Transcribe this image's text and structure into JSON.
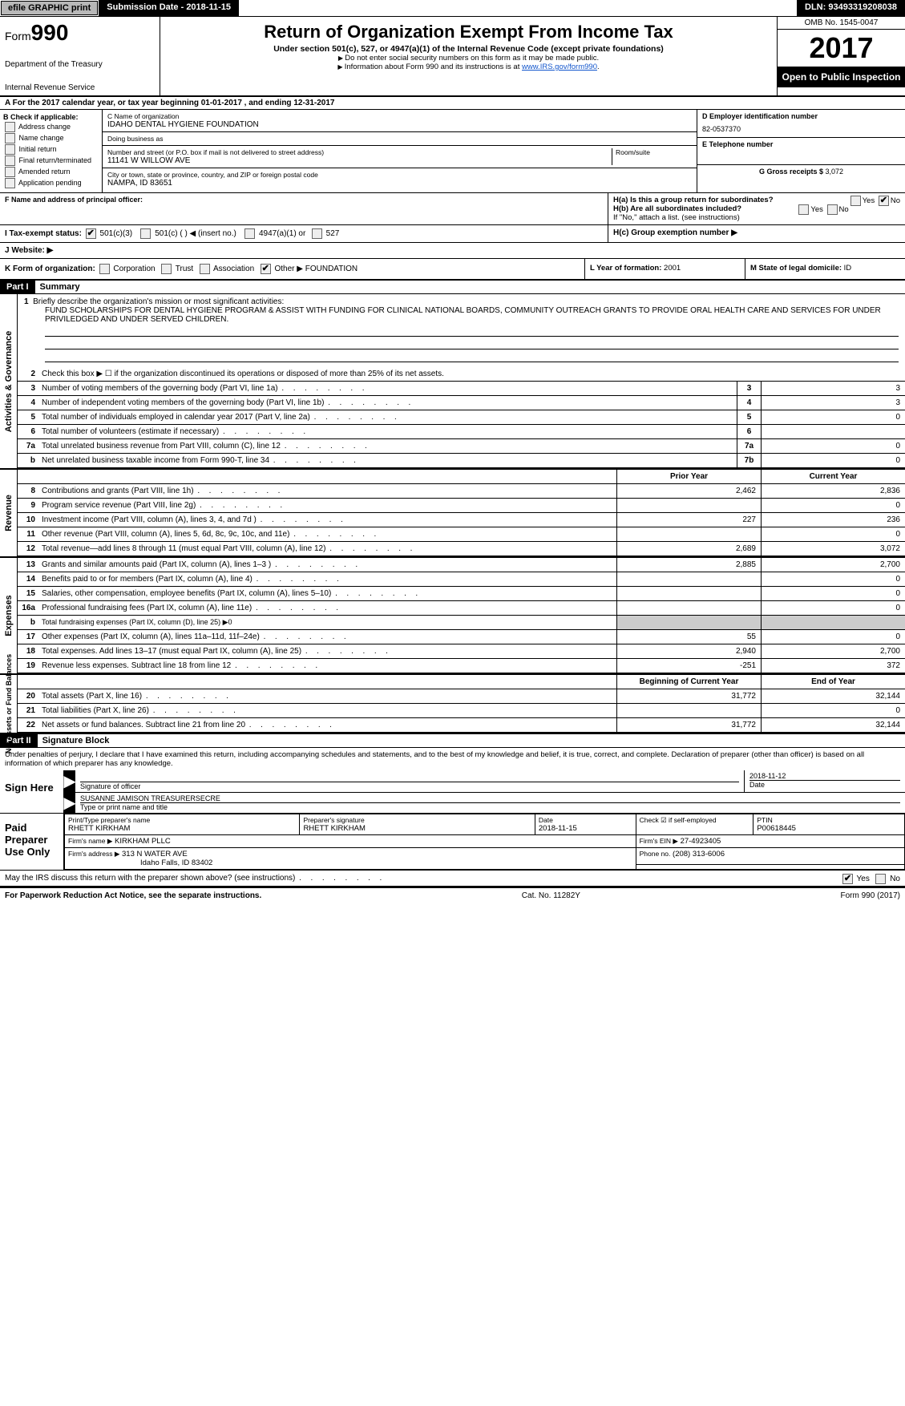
{
  "topbar": {
    "efile_btn": "efile GRAPHIC print",
    "submission_label": "Submission Date - 2018-11-15",
    "dln": "DLN: 93493319208038"
  },
  "header": {
    "form_label": "Form",
    "form_num": "990",
    "dept": "Department of the Treasury",
    "irs": "Internal Revenue Service",
    "title": "Return of Organization Exempt From Income Tax",
    "sub": "Under section 501(c), 527, or 4947(a)(1) of the Internal Revenue Code (except private foundations)",
    "note1": "Do not enter social security numbers on this form as it may be made public.",
    "note2": "Information about Form 990 and its instructions is at ",
    "link": "www.IRS.gov/form990",
    "omb": "OMB No. 1545-0047",
    "year": "2017",
    "open": "Open to Public Inspection"
  },
  "rowA": "A   For the 2017 calendar year, or tax year beginning 01-01-2017       , and ending 12-31-2017",
  "colB": {
    "title": "B Check if applicable:",
    "items": [
      "Address change",
      "Name change",
      "Initial return",
      "Final return/terminated",
      "Amended return",
      "Application pending"
    ]
  },
  "colC": {
    "name_label": "C Name of organization",
    "name": "IDAHO DENTAL HYGIENE FOUNDATION",
    "dba_label": "Doing business as",
    "dba": "",
    "street_label": "Number and street (or P.O. box if mail is not delivered to street address)",
    "street": "11141 W WILLOW AVE",
    "room_label": "Room/suite",
    "city_label": "City or town, state or province, country, and ZIP or foreign postal code",
    "city": "NAMPA, ID  83651",
    "f_label": "F Name and address of principal officer:",
    "f_val": ""
  },
  "colD": {
    "d_label": "D Employer identification number",
    "ein": "82-0537370",
    "e_label": "E Telephone number",
    "phone": "",
    "g_label": "G Gross receipts $",
    "g_val": "3,072"
  },
  "h": {
    "a_label": "H(a)   Is this a group return for subordinates?",
    "a_yes": "Yes",
    "a_no": "No",
    "b_label": "H(b)   Are all subordinates included?",
    "b_note": "If \"No,\" attach a list. (see instructions)",
    "c_label": "H(c)   Group exemption number ▶"
  },
  "i": {
    "label": "I    Tax-exempt status:",
    "o1": "501(c)(3)",
    "o2": "501(c) (  ) ◀ (insert no.)",
    "o3": "4947(a)(1) or",
    "o4": "527"
  },
  "j": {
    "label": "J    Website: ▶"
  },
  "k": {
    "label": "K Form of organization:",
    "o1": "Corporation",
    "o2": "Trust",
    "o3": "Association",
    "o4": "Other ▶",
    "other_val": "FOUNDATION"
  },
  "l": {
    "label": "L Year of formation:",
    "val": "2001"
  },
  "m": {
    "label": "M State of legal domicile:",
    "val": "ID"
  },
  "partI": {
    "num": "Part I",
    "title": "Summary"
  },
  "mission": {
    "num": "1",
    "label": "Briefly describe the organization's mission or most significant activities:",
    "text": "FUND SCHOLARSHIPS FOR DENTAL HYGIENE PROGRAM & ASSIST WITH FUNDING FOR CLINICAL NATIONAL BOARDS, COMMUNITY OUTREACH GRANTS TO PROVIDE ORAL HEALTH CARE AND SERVICES FOR UNDER PRIVILEDGED AND UNDER SERVED CHILDREN."
  },
  "gov_lines": [
    {
      "n": "2",
      "d": "Check this box ▶ ☐ if the organization discontinued its operations or disposed of more than 25% of its net assets."
    },
    {
      "n": "3",
      "d": "Number of voting members of the governing body (Part VI, line 1a)",
      "box": "3",
      "v": "3"
    },
    {
      "n": "4",
      "d": "Number of independent voting members of the governing body (Part VI, line 1b)",
      "box": "4",
      "v": "3"
    },
    {
      "n": "5",
      "d": "Total number of individuals employed in calendar year 2017 (Part V, line 2a)",
      "box": "5",
      "v": "0"
    },
    {
      "n": "6",
      "d": "Total number of volunteers (estimate if necessary)",
      "box": "6",
      "v": ""
    },
    {
      "n": "7a",
      "d": "Total unrelated business revenue from Part VIII, column (C), line 12",
      "box": "7a",
      "v": "0"
    },
    {
      "n": "b",
      "d": "Net unrelated business taxable income from Form 990-T, line 34",
      "box": "7b",
      "v": "0"
    }
  ],
  "col_hdr": {
    "prior": "Prior Year",
    "curr": "Current Year"
  },
  "rev_lines": [
    {
      "n": "8",
      "d": "Contributions and grants (Part VIII, line 1h)",
      "p": "2,462",
      "c": "2,836"
    },
    {
      "n": "9",
      "d": "Program service revenue (Part VIII, line 2g)",
      "p": "",
      "c": "0"
    },
    {
      "n": "10",
      "d": "Investment income (Part VIII, column (A), lines 3, 4, and 7d )",
      "p": "227",
      "c": "236"
    },
    {
      "n": "11",
      "d": "Other revenue (Part VIII, column (A), lines 5, 6d, 8c, 9c, 10c, and 11e)",
      "p": "",
      "c": "0"
    },
    {
      "n": "12",
      "d": "Total revenue—add lines 8 through 11 (must equal Part VIII, column (A), line 12)",
      "p": "2,689",
      "c": "3,072"
    }
  ],
  "exp_lines": [
    {
      "n": "13",
      "d": "Grants and similar amounts paid (Part IX, column (A), lines 1–3 )",
      "p": "2,885",
      "c": "2,700"
    },
    {
      "n": "14",
      "d": "Benefits paid to or for members (Part IX, column (A), line 4)",
      "p": "",
      "c": "0"
    },
    {
      "n": "15",
      "d": "Salaries, other compensation, employee benefits (Part IX, column (A), lines 5–10)",
      "p": "",
      "c": "0"
    },
    {
      "n": "16a",
      "d": "Professional fundraising fees (Part IX, column (A), line 11e)",
      "p": "",
      "c": "0"
    },
    {
      "n": "b",
      "d": "Total fundraising expenses (Part IX, column (D), line 25) ▶0",
      "shade": true
    },
    {
      "n": "17",
      "d": "Other expenses (Part IX, column (A), lines 11a–11d, 11f–24e)",
      "p": "55",
      "c": "0"
    },
    {
      "n": "18",
      "d": "Total expenses. Add lines 13–17 (must equal Part IX, column (A), line 25)",
      "p": "2,940",
      "c": "2,700"
    },
    {
      "n": "19",
      "d": "Revenue less expenses. Subtract line 18 from line 12",
      "p": "-251",
      "c": "372"
    }
  ],
  "na_hdr": {
    "prior": "Beginning of Current Year",
    "curr": "End of Year"
  },
  "na_lines": [
    {
      "n": "20",
      "d": "Total assets (Part X, line 16)",
      "p": "31,772",
      "c": "32,144"
    },
    {
      "n": "21",
      "d": "Total liabilities (Part X, line 26)",
      "p": "",
      "c": "0"
    },
    {
      "n": "22",
      "d": "Net assets or fund balances. Subtract line 21 from line 20",
      "p": "31,772",
      "c": "32,144"
    }
  ],
  "vtabs": {
    "gov": "Activities & Governance",
    "rev": "Revenue",
    "exp": "Expenses",
    "na": "Net Assets or\nFund Balances"
  },
  "partII": {
    "num": "Part II",
    "title": "Signature Block"
  },
  "sig": {
    "declaration": "Under penalties of perjury, I declare that I have examined this return, including accompanying schedules and statements, and to the best of my knowledge and belief, it is true, correct, and complete. Declaration of preparer (other than officer) is based on all information of which preparer has any knowledge.",
    "sign_here": "Sign Here",
    "sig_officer": "Signature of officer",
    "sig_date": "2018-11-12",
    "date_lbl": "Date",
    "officer_name": "SUSANNE JAMISON  TREASURERSECRE",
    "officer_lbl": "Type or print name and title"
  },
  "prep": {
    "title": "Paid Preparer Use Only",
    "name_lbl": "Print/Type preparer's name",
    "name": "RHETT KIRKHAM",
    "sig_lbl": "Preparer's signature",
    "sig": "RHETT KIRKHAM",
    "date_lbl": "Date",
    "date": "2018-11-15",
    "check_lbl": "Check ☑ if self-employed",
    "ptin_lbl": "PTIN",
    "ptin": "P00618445",
    "firm_name_lbl": "Firm's name     ▶",
    "firm_name": "KIRKHAM PLLC",
    "firm_ein_lbl": "Firm's EIN ▶",
    "firm_ein": "27-4923405",
    "firm_addr_lbl": "Firm's address ▶",
    "firm_addr1": "313 N WATER AVE",
    "firm_addr2": "Idaho Falls, ID  83402",
    "phone_lbl": "Phone no.",
    "phone": "(208) 313-6006"
  },
  "discuss": {
    "q": "May the IRS discuss this return with the preparer shown above? (see instructions)",
    "yes": "Yes",
    "no": "No"
  },
  "footer": {
    "left": "For Paperwork Reduction Act Notice, see the separate instructions.",
    "mid": "Cat. No. 11282Y",
    "right": "Form 990 (2017)"
  }
}
